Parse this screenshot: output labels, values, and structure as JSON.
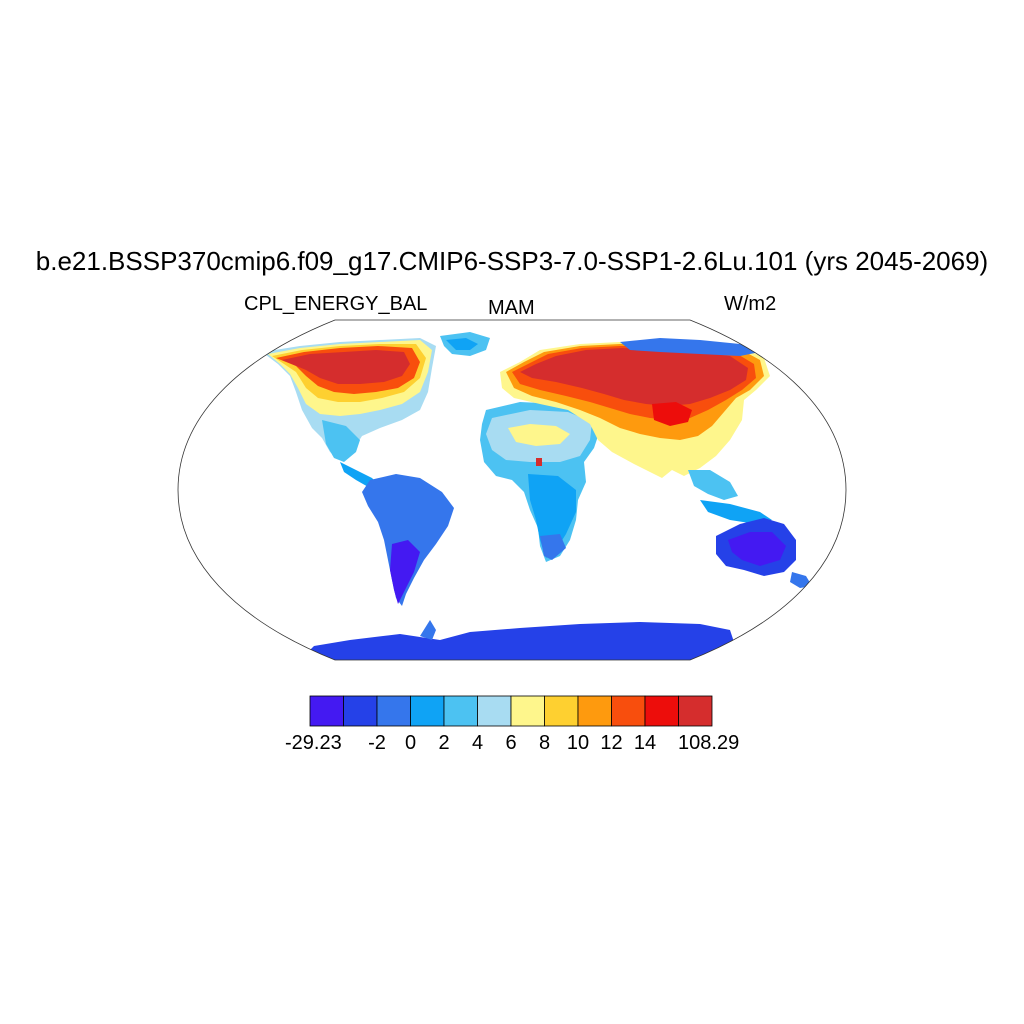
{
  "title": "b.e21.BSSP370cmip6.f09_g17.CMIP6-SSP3-7.0-SSP1-2.6Lu.101 (yrs 2045-2069)",
  "left_string": "CPL_ENERGY_BAL",
  "center_string": "MAM",
  "right_string": "W/m2",
  "colorbar": {
    "colors": [
      "#4419f2",
      "#2541e8",
      "#3576ec",
      "#0fa3f5",
      "#4cc2f2",
      "#a8dcf2",
      "#fef68c",
      "#fed030",
      "#fe9a0e",
      "#f84e0d",
      "#ed0d0b",
      "#d52d2d"
    ],
    "labels": [
      "-29.23",
      "-2",
      "0",
      "2",
      "4",
      "6",
      "8",
      "10",
      "12",
      "14",
      "108.29"
    ]
  },
  "map_colors": {
    "ocean": "#ffffff",
    "antarctica": "#2541e8",
    "coast": "#1a1a1a"
  }
}
